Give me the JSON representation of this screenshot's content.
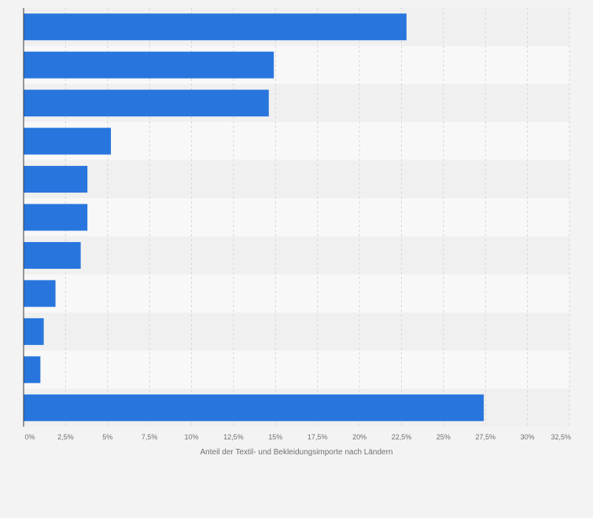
{
  "chart_data": {
    "type": "bar",
    "orientation": "horizontal",
    "categories": [
      "",
      "",
      "",
      "",
      "",
      "",
      "",
      "",
      "",
      "",
      ""
    ],
    "values": [
      22.8,
      14.9,
      14.6,
      5.2,
      3.8,
      3.8,
      3.4,
      1.9,
      1.2,
      1.0,
      27.4
    ],
    "xlim": [
      0,
      32.5
    ],
    "xticks": [
      "0%",
      "2,5%",
      "5%",
      "7,5%",
      "10%",
      "12,5%",
      "15%",
      "17,5%",
      "20%",
      "22,5%",
      "25%",
      "27,5%",
      "30%",
      "32,5%"
    ],
    "xlabel": "Anteil der Textil- und Bekleidungsimporte nach Ländern",
    "ylabel": "",
    "title": "",
    "grid": true,
    "colors": {
      "bar": "#2876dd",
      "band_dark": "#f0f0f0",
      "band_light": "#f8f8f8",
      "grid": "#d7d7d7",
      "axis": "#3a3a3a",
      "tick_text": "#707070",
      "label_text": "#707070",
      "background": "#f3f3f3"
    }
  }
}
